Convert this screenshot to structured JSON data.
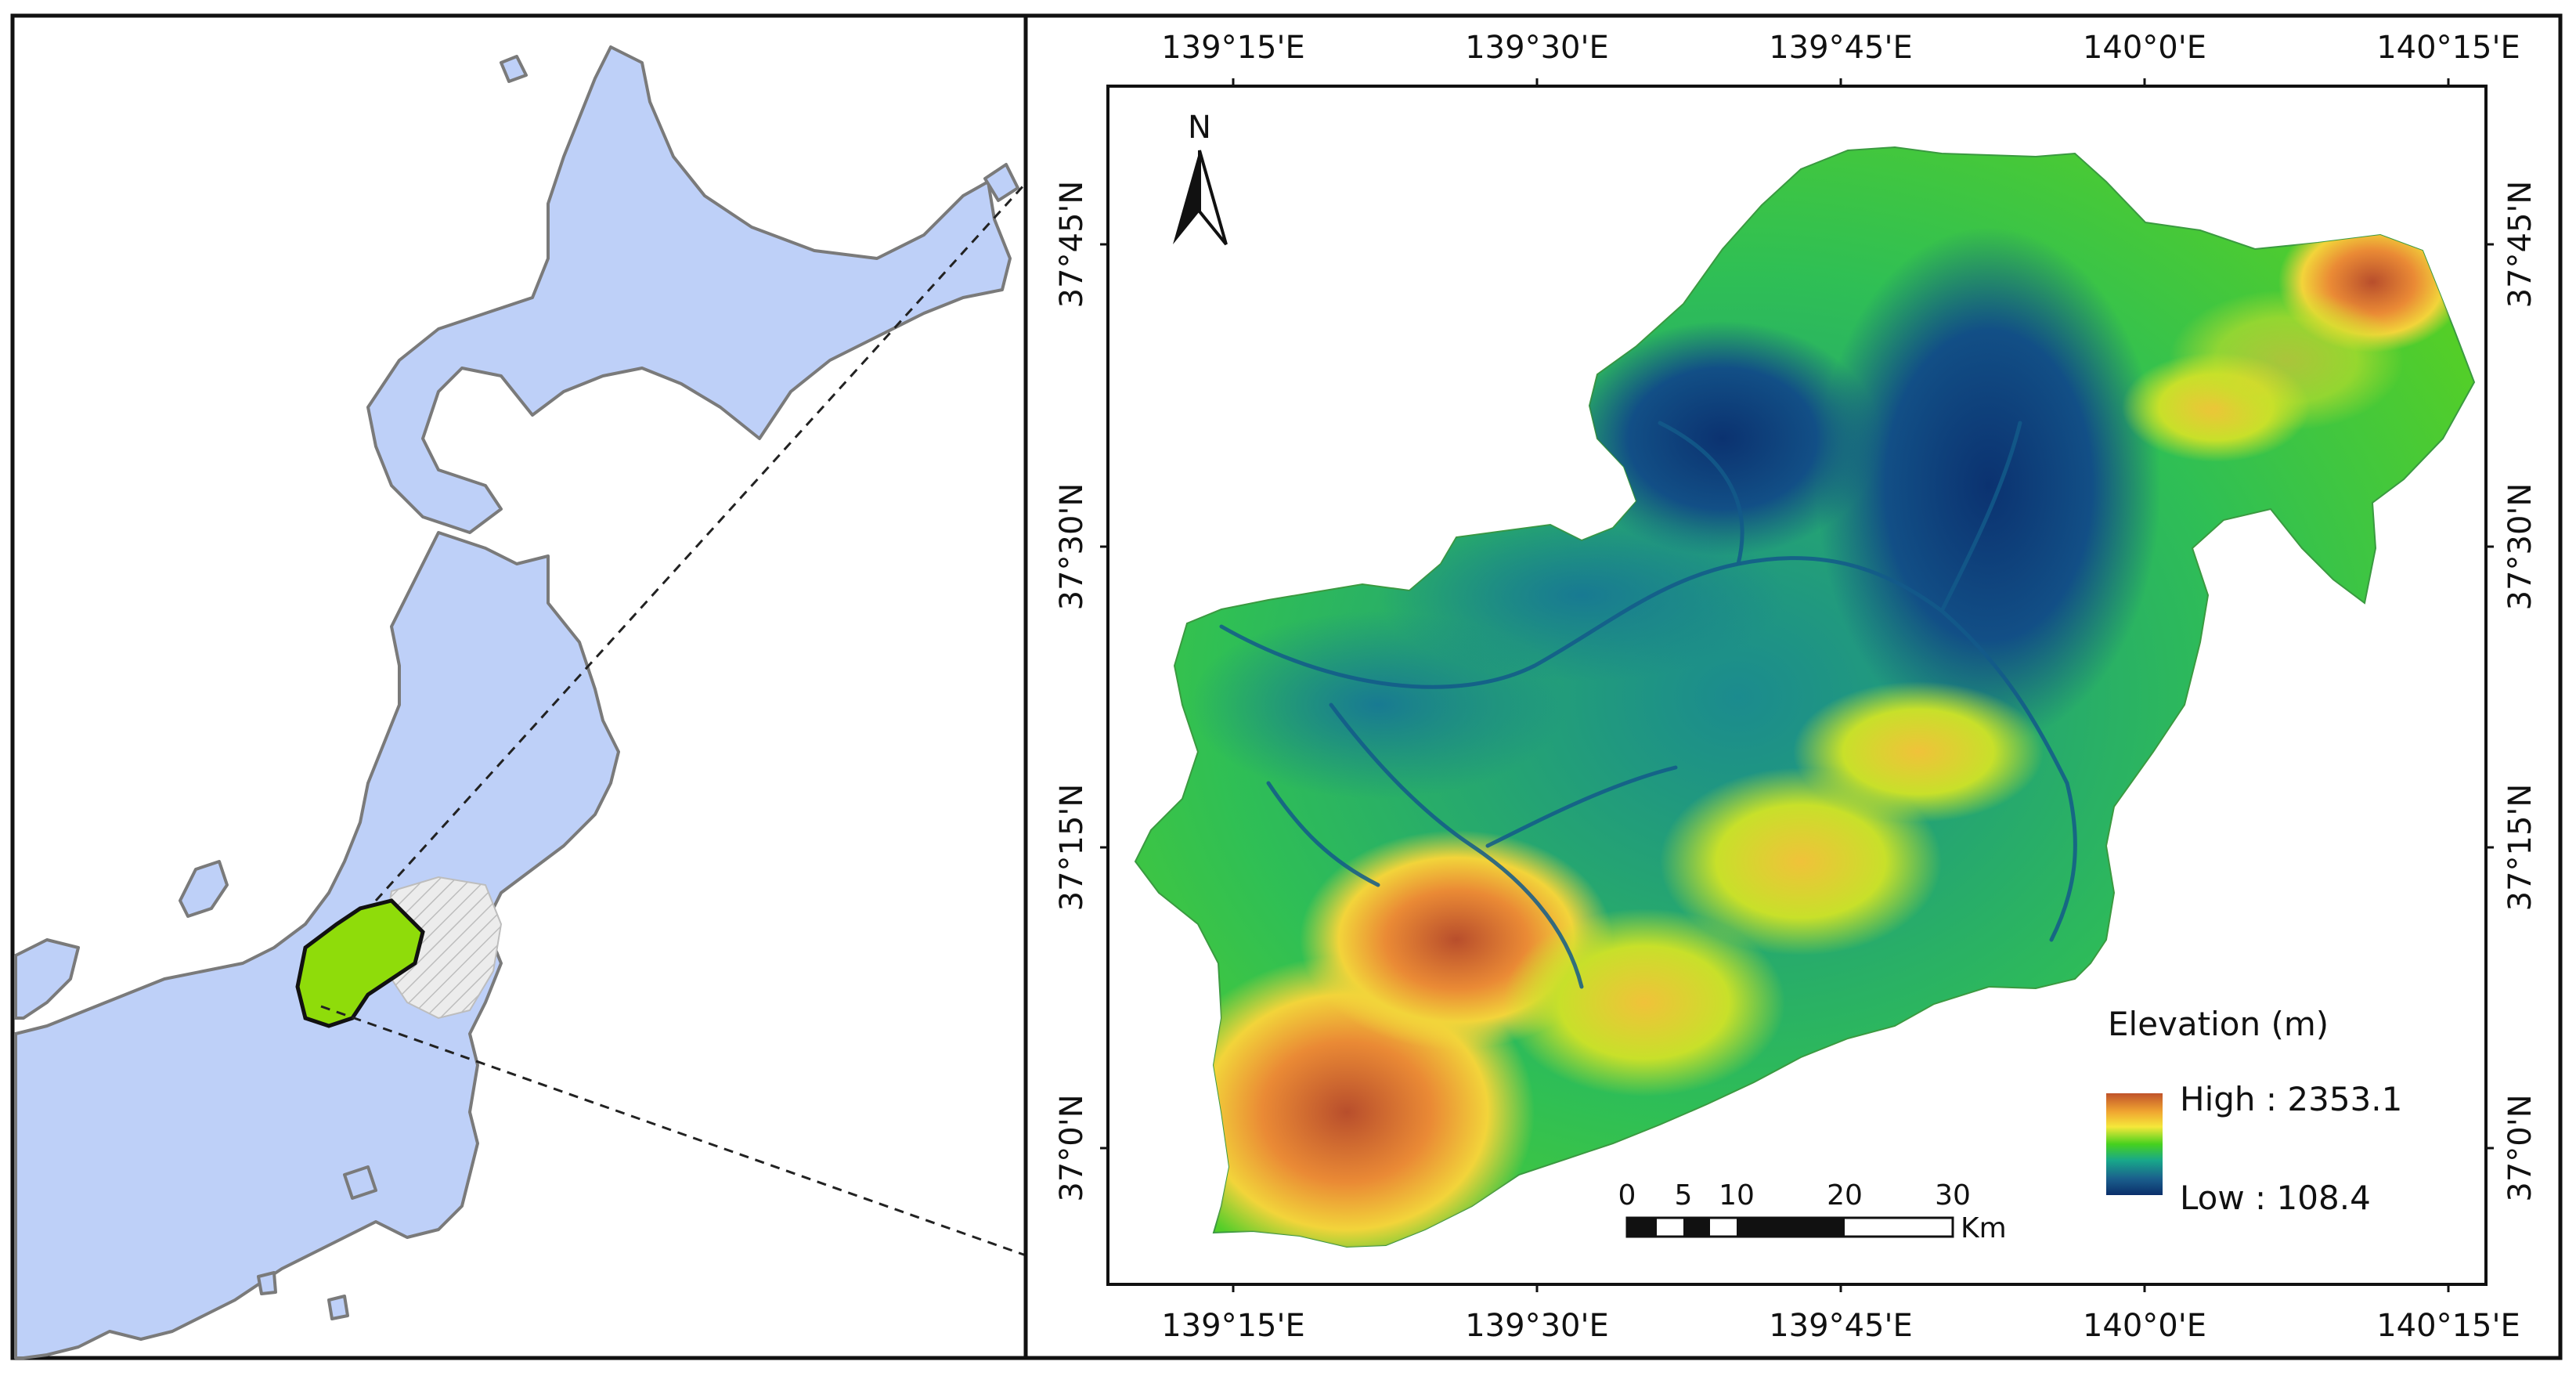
{
  "top_lon_labels": [
    "139°15'E",
    "139°30'E",
    "139°45'E",
    "140°0'E",
    "140°15'E"
  ],
  "bottom_lon_labels": [
    "139°15'E",
    "139°30'E",
    "139°45'E",
    "140°0'E",
    "140°15'E"
  ],
  "left_lat_labels": [
    "37°45'N",
    "37°30'N",
    "37°15'N",
    "37°0'N"
  ],
  "right_lat_labels": [
    "37°45'N",
    "37°30'N",
    "37°15'N",
    "37°0'N"
  ],
  "north_arrow": {
    "letter": "N"
  },
  "legend": {
    "title": "Elevation (m)",
    "high_label": "High : 2353.1",
    "low_label": "Low : 108.4",
    "ramp_colors": [
      "#c0532a",
      "#f0a531",
      "#f5e83a",
      "#46d11e",
      "#18a78a",
      "#1a5f8c",
      "#0b2f6b"
    ]
  },
  "scale_bar": {
    "ticks": [
      "0",
      "5",
      "10",
      "20",
      "30"
    ],
    "unit": "Km"
  },
  "colors": {
    "land": "#bed0f8",
    "coast": "#7a7a7a",
    "study_area": "#8fdc0a",
    "hatched_region": "#e9e9e9"
  }
}
